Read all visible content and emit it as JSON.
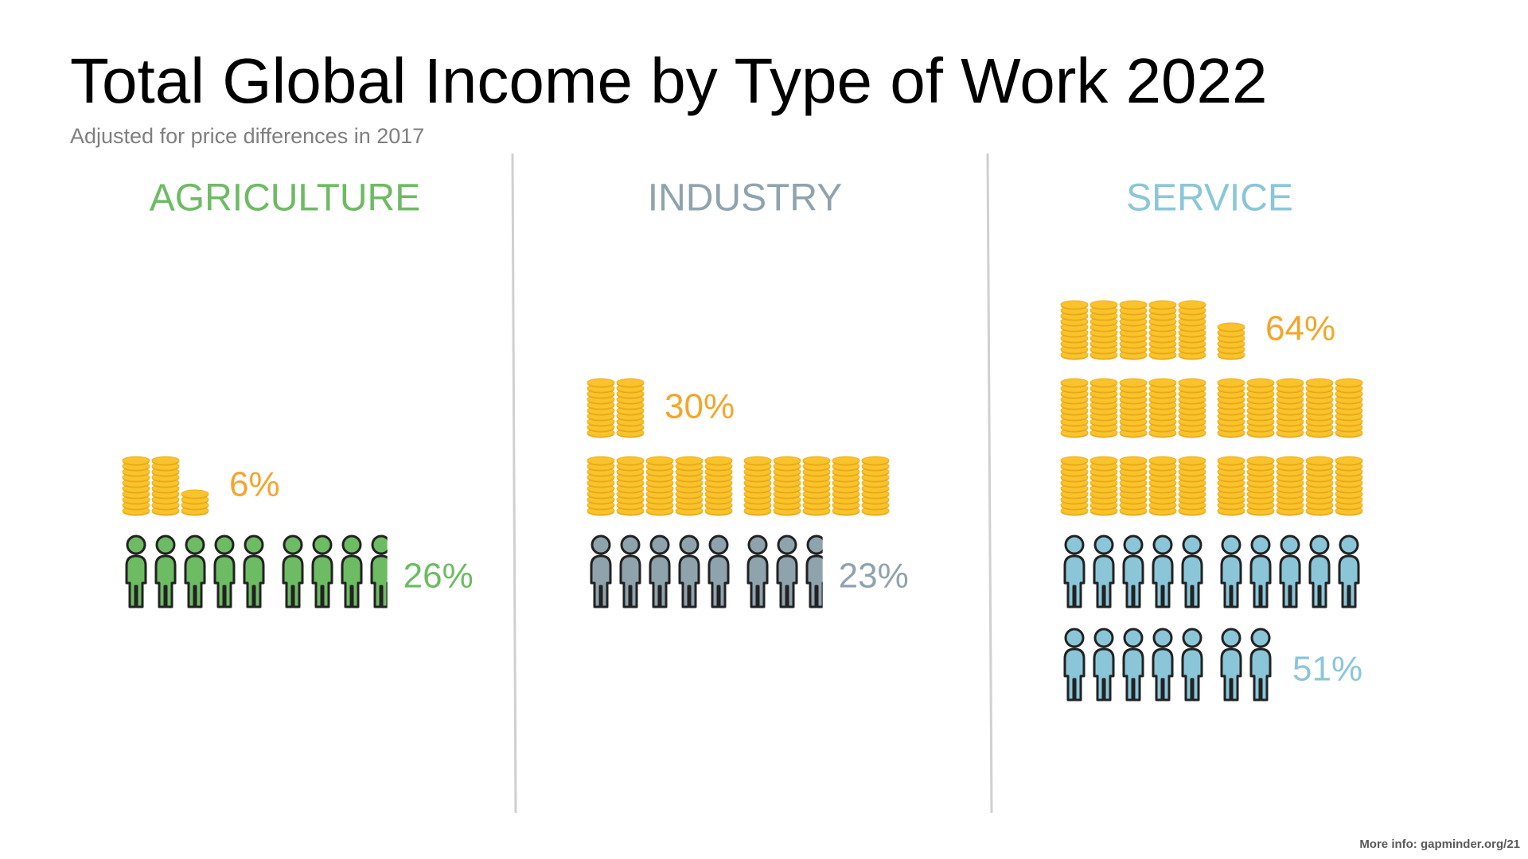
{
  "chart_data": {
    "type": "pictograph",
    "title": "Total Global Income by Type of Work 2022",
    "subtitle": "Adjusted for price differences in 2017",
    "footer": "More info: gapminder.org/21",
    "categories": [
      "AGRICULTURE",
      "INDUSTRY",
      "SERVICE"
    ],
    "category_colors": [
      "#6dbb63",
      "#8fa3ad",
      "#8ac6d8"
    ],
    "income": {
      "values": [
        6,
        30,
        64
      ],
      "value_labels": [
        "6%",
        "30%",
        "64%"
      ],
      "color": "#f9c32b",
      "label_color": "#f4a52a"
    },
    "workers": {
      "values": [
        26,
        23,
        51
      ],
      "value_labels": [
        "26%",
        "23%",
        "51%"
      ]
    }
  }
}
